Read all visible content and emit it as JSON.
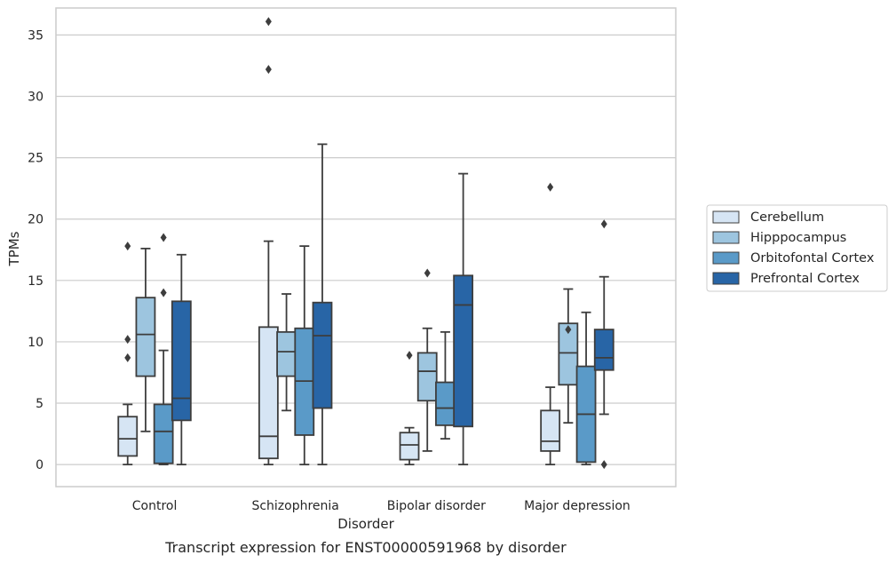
{
  "chart_data": {
    "type": "box",
    "caption": "Transcript expression for ENST00000591968 by disorder",
    "xlabel": "Disorder",
    "ylabel": "TPMs",
    "ylim": [
      -1.8,
      37.2
    ],
    "yticks": [
      0,
      5,
      10,
      15,
      20,
      25,
      30,
      35
    ],
    "grid": true,
    "legend_position": "right",
    "categories": [
      "Control",
      "Schizophrenia",
      "Bipolar disorder",
      "Major depression"
    ],
    "series": [
      {
        "name": "Cerebellum",
        "color": "#d6e5f4",
        "boxes": [
          {
            "whisker_low": 0.0,
            "q1": 0.7,
            "median": 2.1,
            "q3": 3.9,
            "whisker_high": 4.9,
            "outliers": [
              17.8,
              10.2,
              8.7
            ]
          },
          {
            "whisker_low": 0.0,
            "q1": 0.5,
            "median": 2.3,
            "q3": 11.2,
            "whisker_high": 18.2,
            "outliers": [
              36.1,
              32.2
            ]
          },
          {
            "whisker_low": 0.0,
            "q1": 0.4,
            "median": 1.6,
            "q3": 2.6,
            "whisker_high": 3.0,
            "outliers": [
              8.9
            ]
          },
          {
            "whisker_low": 0.0,
            "q1": 1.1,
            "median": 1.9,
            "q3": 4.4,
            "whisker_high": 6.3,
            "outliers": [
              22.6
            ]
          }
        ]
      },
      {
        "name": "Hipppocampus",
        "color": "#9dc5df",
        "boxes": [
          {
            "whisker_low": 2.7,
            "q1": 7.2,
            "median": 10.6,
            "q3": 13.6,
            "whisker_high": 17.6,
            "outliers": []
          },
          {
            "whisker_low": 4.4,
            "q1": 7.2,
            "median": 9.2,
            "q3": 10.8,
            "whisker_high": 13.9,
            "outliers": []
          },
          {
            "whisker_low": 1.1,
            "q1": 5.2,
            "median": 7.6,
            "q3": 9.1,
            "whisker_high": 11.1,
            "outliers": [
              15.6
            ]
          },
          {
            "whisker_low": 3.4,
            "q1": 6.5,
            "median": 9.1,
            "q3": 11.5,
            "whisker_high": 14.3,
            "outliers": [
              11.0
            ]
          }
        ]
      },
      {
        "name": "Orbitofontal Cortex",
        "color": "#5a9ac8",
        "boxes": [
          {
            "whisker_low": 0.0,
            "q1": 0.1,
            "median": 2.7,
            "q3": 4.9,
            "whisker_high": 9.3,
            "outliers": [
              18.5,
              14.0
            ]
          },
          {
            "whisker_low": 0.0,
            "q1": 2.4,
            "median": 6.8,
            "q3": 11.1,
            "whisker_high": 17.8,
            "outliers": []
          },
          {
            "whisker_low": 2.1,
            "q1": 3.2,
            "median": 4.6,
            "q3": 6.7,
            "whisker_high": 10.8,
            "outliers": []
          },
          {
            "whisker_low": 0.0,
            "q1": 0.2,
            "median": 4.1,
            "q3": 8.0,
            "whisker_high": 12.4,
            "outliers": []
          }
        ]
      },
      {
        "name": "Prefrontal Cortex",
        "color": "#2865a6",
        "boxes": [
          {
            "whisker_low": 0.0,
            "q1": 3.6,
            "median": 5.4,
            "q3": 13.3,
            "whisker_high": 17.1,
            "outliers": []
          },
          {
            "whisker_low": 0.0,
            "q1": 4.6,
            "median": 10.5,
            "q3": 13.2,
            "whisker_high": 26.1,
            "outliers": []
          },
          {
            "whisker_low": 0.0,
            "q1": 3.1,
            "median": 13.0,
            "q3": 15.4,
            "whisker_high": 23.7,
            "outliers": []
          },
          {
            "whisker_low": 4.1,
            "q1": 7.7,
            "median": 8.7,
            "q3": 11.0,
            "whisker_high": 15.3,
            "outliers": [
              19.6,
              0.0
            ]
          }
        ]
      }
    ]
  }
}
